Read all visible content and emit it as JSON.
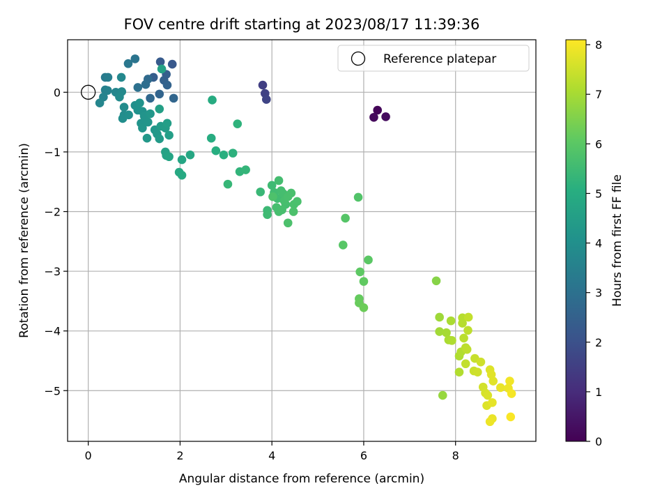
{
  "chart_data": {
    "type": "scatter",
    "title": "FOV centre drift starting at 2023/08/17 11:39:36",
    "xlabel": "Angular distance from reference (arcmin)",
    "ylabel": "Rotation from reference (arcmin)",
    "xlim": [
      -0.45,
      9.75
    ],
    "ylim": [
      -5.85,
      0.88
    ],
    "xticks": [
      "0",
      "2",
      "4",
      "6",
      "8"
    ],
    "yticks": [
      "0",
      "−1",
      "−2",
      "−3",
      "−4",
      "−5"
    ],
    "grid": true,
    "colormap": "viridis",
    "colorbar": {
      "label": "Hours from first FF file",
      "range": [
        0,
        8.1
      ],
      "ticks": [
        "0",
        "1",
        "2",
        "3",
        "4",
        "5",
        "6",
        "7",
        "8"
      ]
    },
    "legend": {
      "position": "top-right",
      "entries": [
        "Reference platepar"
      ]
    },
    "reference": {
      "x": 0,
      "y": 0
    },
    "points": [
      {
        "x": 6.3,
        "y": -0.3,
        "h": 0.1
      },
      {
        "x": 6.22,
        "y": -0.42,
        "h": 0.2
      },
      {
        "x": 6.48,
        "y": -0.41,
        "h": 0.25
      },
      {
        "x": 3.8,
        "y": 0.12,
        "h": 1.5
      },
      {
        "x": 3.85,
        "y": -0.02,
        "h": 1.6
      },
      {
        "x": 3.88,
        "y": -0.12,
        "h": 1.65
      },
      {
        "x": 1.83,
        "y": 0.47,
        "h": 2.2
      },
      {
        "x": 1.57,
        "y": 0.51,
        "h": 2.3
      },
      {
        "x": 1.42,
        "y": 0.25,
        "h": 2.4
      },
      {
        "x": 1.65,
        "y": 0.2,
        "h": 2.5
      },
      {
        "x": 1.7,
        "y": 0.3,
        "h": 2.45
      },
      {
        "x": 1.72,
        "y": 0.12,
        "h": 2.55
      },
      {
        "x": 1.55,
        "y": -0.03,
        "h": 2.6
      },
      {
        "x": 1.35,
        "y": -0.1,
        "h": 2.7
      },
      {
        "x": 1.86,
        "y": -0.1,
        "h": 2.65
      },
      {
        "x": 1.3,
        "y": 0.22,
        "h": 2.8
      },
      {
        "x": 1.25,
        "y": 0.13,
        "h": 2.9
      },
      {
        "x": 1.08,
        "y": 0.08,
        "h": 3.0
      },
      {
        "x": 1.02,
        "y": 0.56,
        "h": 3.1
      },
      {
        "x": 0.87,
        "y": 0.48,
        "h": 3.2
      },
      {
        "x": 0.37,
        "y": 0.25,
        "h": 3.3
      },
      {
        "x": 0.43,
        "y": 0.25,
        "h": 3.4
      },
      {
        "x": 0.37,
        "y": 0.04,
        "h": 3.5
      },
      {
        "x": 0.42,
        "y": 0.03,
        "h": 3.55
      },
      {
        "x": 0.33,
        "y": -0.08,
        "h": 3.6
      },
      {
        "x": 0.25,
        "y": -0.18,
        "h": 3.7
      },
      {
        "x": 0.6,
        "y": 0.0,
        "h": 3.7
      },
      {
        "x": 0.72,
        "y": 0.25,
        "h": 3.75
      },
      {
        "x": 0.73,
        "y": 0.01,
        "h": 3.8
      },
      {
        "x": 0.68,
        "y": -0.08,
        "h": 3.85
      },
      {
        "x": 0.78,
        "y": -0.25,
        "h": 3.9
      },
      {
        "x": 0.78,
        "y": -0.38,
        "h": 3.9
      },
      {
        "x": 0.75,
        "y": -0.44,
        "h": 3.95
      },
      {
        "x": 0.88,
        "y": -0.38,
        "h": 4.0
      },
      {
        "x": 1.02,
        "y": -0.22,
        "h": 4.0
      },
      {
        "x": 1.08,
        "y": -0.3,
        "h": 4.05
      },
      {
        "x": 1.12,
        "y": -0.18,
        "h": 4.1
      },
      {
        "x": 1.18,
        "y": -0.32,
        "h": 4.1
      },
      {
        "x": 1.22,
        "y": -0.4,
        "h": 4.15
      },
      {
        "x": 1.15,
        "y": -0.52,
        "h": 4.15
      },
      {
        "x": 1.18,
        "y": -0.6,
        "h": 4.2
      },
      {
        "x": 1.3,
        "y": -0.5,
        "h": 4.2
      },
      {
        "x": 1.35,
        "y": -0.36,
        "h": 4.25
      },
      {
        "x": 1.45,
        "y": -0.63,
        "h": 4.25
      },
      {
        "x": 1.28,
        "y": -0.77,
        "h": 4.3
      },
      {
        "x": 1.5,
        "y": -0.7,
        "h": 4.3
      },
      {
        "x": 1.55,
        "y": -0.78,
        "h": 4.35
      },
      {
        "x": 1.58,
        "y": -0.57,
        "h": 4.4
      },
      {
        "x": 1.68,
        "y": -0.6,
        "h": 4.45
      },
      {
        "x": 1.72,
        "y": -0.52,
        "h": 4.5
      },
      {
        "x": 1.76,
        "y": -0.72,
        "h": 4.5
      },
      {
        "x": 1.55,
        "y": -0.28,
        "h": 4.55
      },
      {
        "x": 1.6,
        "y": 0.39,
        "h": 4.6
      },
      {
        "x": 1.68,
        "y": -1.0,
        "h": 4.6
      },
      {
        "x": 1.7,
        "y": -1.06,
        "h": 4.65
      },
      {
        "x": 1.76,
        "y": -1.08,
        "h": 4.7
      },
      {
        "x": 2.04,
        "y": -1.13,
        "h": 4.75
      },
      {
        "x": 2.22,
        "y": -1.05,
        "h": 4.8
      },
      {
        "x": 1.98,
        "y": -1.34,
        "h": 4.85
      },
      {
        "x": 2.04,
        "y": -1.39,
        "h": 4.9
      },
      {
        "x": 2.7,
        "y": -0.13,
        "h": 4.95
      },
      {
        "x": 2.68,
        "y": -0.77,
        "h": 5.0
      },
      {
        "x": 2.78,
        "y": -0.98,
        "h": 5.05
      },
      {
        "x": 2.95,
        "y": -1.05,
        "h": 5.1
      },
      {
        "x": 3.15,
        "y": -1.02,
        "h": 5.15
      },
      {
        "x": 3.25,
        "y": -0.53,
        "h": 5.2
      },
      {
        "x": 3.3,
        "y": -1.33,
        "h": 5.25
      },
      {
        "x": 3.43,
        "y": -1.3,
        "h": 5.3
      },
      {
        "x": 3.04,
        "y": -1.54,
        "h": 5.35
      },
      {
        "x": 3.75,
        "y": -1.67,
        "h": 5.4
      },
      {
        "x": 3.9,
        "y": -1.98,
        "h": 5.45
      },
      {
        "x": 3.9,
        "y": -2.05,
        "h": 5.5
      },
      {
        "x": 4.0,
        "y": -1.56,
        "h": 5.5
      },
      {
        "x": 4.05,
        "y": -1.68,
        "h": 5.55
      },
      {
        "x": 4.12,
        "y": -1.78,
        "h": 5.55
      },
      {
        "x": 4.15,
        "y": -1.48,
        "h": 5.6
      },
      {
        "x": 4.2,
        "y": -1.65,
        "h": 5.6
      },
      {
        "x": 4.25,
        "y": -1.7,
        "h": 5.62
      },
      {
        "x": 4.3,
        "y": -1.88,
        "h": 5.62
      },
      {
        "x": 4.1,
        "y": -1.93,
        "h": 5.65
      },
      {
        "x": 4.15,
        "y": -2.0,
        "h": 5.65
      },
      {
        "x": 4.22,
        "y": -1.97,
        "h": 5.67
      },
      {
        "x": 4.27,
        "y": -1.82,
        "h": 5.67
      },
      {
        "x": 4.35,
        "y": -1.75,
        "h": 5.7
      },
      {
        "x": 4.42,
        "y": -1.69,
        "h": 5.7
      },
      {
        "x": 4.48,
        "y": -1.88,
        "h": 5.72
      },
      {
        "x": 4.55,
        "y": -1.83,
        "h": 5.72
      },
      {
        "x": 4.47,
        "y": -2.0,
        "h": 5.75
      },
      {
        "x": 4.35,
        "y": -2.19,
        "h": 5.75
      },
      {
        "x": 4.02,
        "y": -1.75,
        "h": 5.78
      },
      {
        "x": 5.88,
        "y": -1.76,
        "h": 5.85
      },
      {
        "x": 5.6,
        "y": -2.11,
        "h": 5.9
      },
      {
        "x": 5.55,
        "y": -2.56,
        "h": 5.95
      },
      {
        "x": 6.1,
        "y": -2.81,
        "h": 6.0
      },
      {
        "x": 5.92,
        "y": -3.01,
        "h": 6.05
      },
      {
        "x": 6.0,
        "y": -3.17,
        "h": 6.1
      },
      {
        "x": 5.9,
        "y": -3.46,
        "h": 6.15
      },
      {
        "x": 5.9,
        "y": -3.53,
        "h": 6.2
      },
      {
        "x": 6.0,
        "y": -3.61,
        "h": 6.25
      },
      {
        "x": 7.58,
        "y": -3.16,
        "h": 6.6
      },
      {
        "x": 7.65,
        "y": -3.77,
        "h": 6.9
      },
      {
        "x": 7.65,
        "y": -4.01,
        "h": 6.95
      },
      {
        "x": 7.72,
        "y": -5.08,
        "h": 6.8
      },
      {
        "x": 7.8,
        "y": -4.03,
        "h": 7.0
      },
      {
        "x": 7.85,
        "y": -4.15,
        "h": 7.05
      },
      {
        "x": 7.9,
        "y": -3.83,
        "h": 7.05
      },
      {
        "x": 7.92,
        "y": -4.16,
        "h": 7.1
      },
      {
        "x": 8.08,
        "y": -4.42,
        "h": 7.1
      },
      {
        "x": 8.08,
        "y": -4.69,
        "h": 7.15
      },
      {
        "x": 8.12,
        "y": -4.35,
        "h": 7.15
      },
      {
        "x": 8.15,
        "y": -3.78,
        "h": 7.2
      },
      {
        "x": 8.15,
        "y": -3.87,
        "h": 7.2
      },
      {
        "x": 8.18,
        "y": -4.12,
        "h": 7.25
      },
      {
        "x": 8.22,
        "y": -4.28,
        "h": 7.25
      },
      {
        "x": 8.25,
        "y": -4.31,
        "h": 7.3
      },
      {
        "x": 8.27,
        "y": -3.99,
        "h": 7.3
      },
      {
        "x": 8.28,
        "y": -3.77,
        "h": 7.35
      },
      {
        "x": 8.22,
        "y": -4.55,
        "h": 7.35
      },
      {
        "x": 8.42,
        "y": -4.46,
        "h": 7.4
      },
      {
        "x": 8.4,
        "y": -4.67,
        "h": 7.45
      },
      {
        "x": 8.48,
        "y": -4.69,
        "h": 7.5
      },
      {
        "x": 8.55,
        "y": -4.52,
        "h": 7.5
      },
      {
        "x": 8.6,
        "y": -4.94,
        "h": 7.55
      },
      {
        "x": 8.65,
        "y": -5.04,
        "h": 7.6
      },
      {
        "x": 8.7,
        "y": -5.08,
        "h": 7.65
      },
      {
        "x": 8.68,
        "y": -5.25,
        "h": 7.7
      },
      {
        "x": 8.75,
        "y": -4.65,
        "h": 7.7
      },
      {
        "x": 8.78,
        "y": -4.73,
        "h": 7.75
      },
      {
        "x": 8.82,
        "y": -4.84,
        "h": 7.75
      },
      {
        "x": 8.8,
        "y": -5.2,
        "h": 7.8
      },
      {
        "x": 8.8,
        "y": -5.47,
        "h": 7.85
      },
      {
        "x": 8.75,
        "y": -5.52,
        "h": 7.9
      },
      {
        "x": 8.98,
        "y": -4.95,
        "h": 7.85
      },
      {
        "x": 9.15,
        "y": -4.96,
        "h": 7.9
      },
      {
        "x": 9.18,
        "y": -4.84,
        "h": 7.95
      },
      {
        "x": 9.22,
        "y": -5.05,
        "h": 8.0
      },
      {
        "x": 9.2,
        "y": -5.44,
        "h": 8.05
      }
    ]
  }
}
